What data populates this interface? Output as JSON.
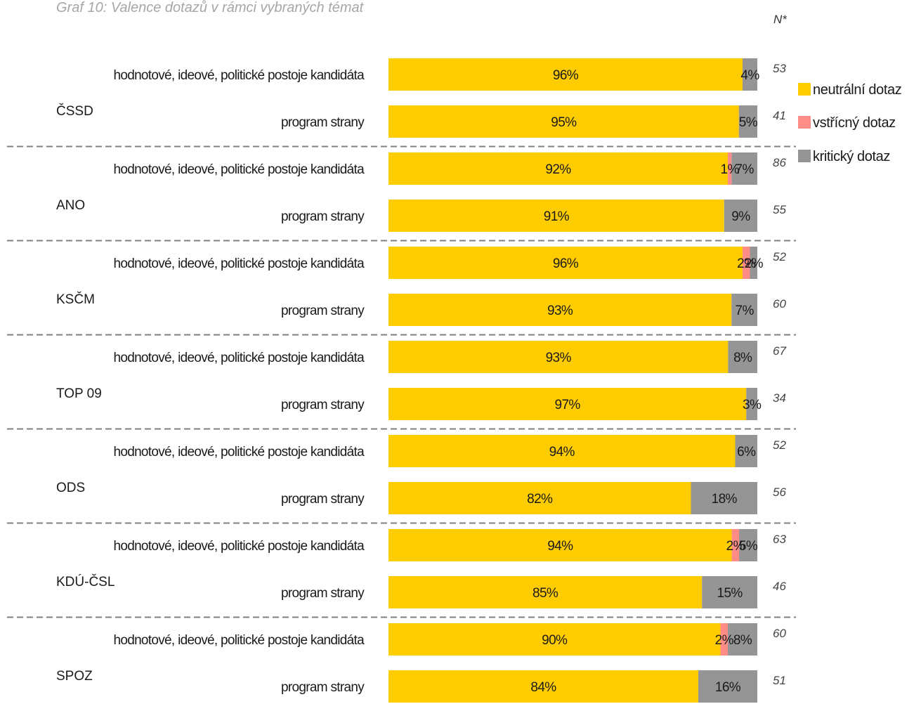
{
  "chart_data": {
    "type": "bar",
    "orientation": "horizontal",
    "stacked": true,
    "title": "Graf 10: Valence dotazů v rámci vybraných témat",
    "n_header": "N*",
    "value_suffix": "%",
    "xlim": [
      0,
      100
    ],
    "grid": false,
    "legend_position": "right",
    "series": [
      {
        "name": "neutrální dotaz",
        "color": "#FFCC00"
      },
      {
        "name": "vstřícný dotaz",
        "color": "#FF8C87"
      },
      {
        "name": "kritický dotaz",
        "color": "#959595"
      }
    ],
    "groups": [
      {
        "name": "ČSSD",
        "rows": [
          {
            "label": "hodnotové, ideové, politické postoje kandidáta",
            "values": [
              96,
              0,
              4
            ],
            "n": 53
          },
          {
            "label": "program strany",
            "values": [
              95,
              0,
              5
            ],
            "n": 41
          }
        ]
      },
      {
        "name": "ANO",
        "rows": [
          {
            "label": "hodnotové, ideové, politické postoje kandidáta",
            "values": [
              92,
              1,
              7
            ],
            "n": 86
          },
          {
            "label": "program strany",
            "values": [
              91,
              0,
              9
            ],
            "n": 55
          }
        ]
      },
      {
        "name": "KSČM",
        "rows": [
          {
            "label": "hodnotové, ideové, politické postoje kandidáta",
            "values": [
              96,
              2,
              2
            ],
            "n": 52
          },
          {
            "label": "program strany",
            "values": [
              93,
              0,
              7
            ],
            "n": 60
          }
        ]
      },
      {
        "name": "TOP 09",
        "rows": [
          {
            "label": "hodnotové, ideové, politické postoje kandidáta",
            "values": [
              93,
              0,
              8
            ],
            "n": 67
          },
          {
            "label": "program strany",
            "values": [
              97,
              0,
              3
            ],
            "n": 34
          }
        ]
      },
      {
        "name": "ODS",
        "rows": [
          {
            "label": "hodnotové, ideové, politické postoje kandidáta",
            "values": [
              94,
              0,
              6
            ],
            "n": 52
          },
          {
            "label": "program strany",
            "values": [
              82,
              0,
              18
            ],
            "n": 56
          }
        ]
      },
      {
        "name": "KDÚ-ČSL",
        "rows": [
          {
            "label": "hodnotové, ideové, politické postoje kandidáta",
            "values": [
              94,
              2,
              5
            ],
            "n": 63
          },
          {
            "label": "program strany",
            "values": [
              85,
              0,
              15
            ],
            "n": 46
          }
        ]
      },
      {
        "name": "SPOZ",
        "rows": [
          {
            "label": "hodnotové, ideové, politické postoje kandidáta",
            "values": [
              90,
              2,
              8
            ],
            "n": 60
          },
          {
            "label": "program strany",
            "values": [
              84,
              0,
              16
            ],
            "n": 51
          }
        ]
      }
    ]
  }
}
